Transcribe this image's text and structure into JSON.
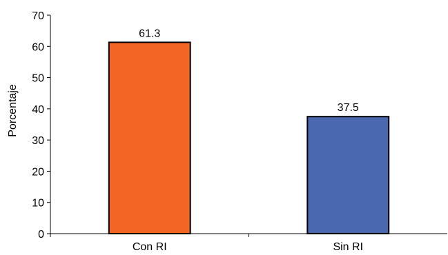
{
  "chart_data": {
    "type": "bar",
    "title": "",
    "xlabel": "",
    "ylabel": "Porcentaje",
    "ylim": [
      0,
      70
    ],
    "yticks": [
      0,
      10,
      20,
      30,
      40,
      50,
      60,
      70
    ],
    "grid": false,
    "legend": "none",
    "categories": [
      "Con RI",
      "Sin RI"
    ],
    "values": [
      61.3,
      37.5
    ],
    "value_labels": [
      "61.3",
      "37.5"
    ],
    "colors": [
      "#F26522",
      "#4A67B0"
    ]
  }
}
